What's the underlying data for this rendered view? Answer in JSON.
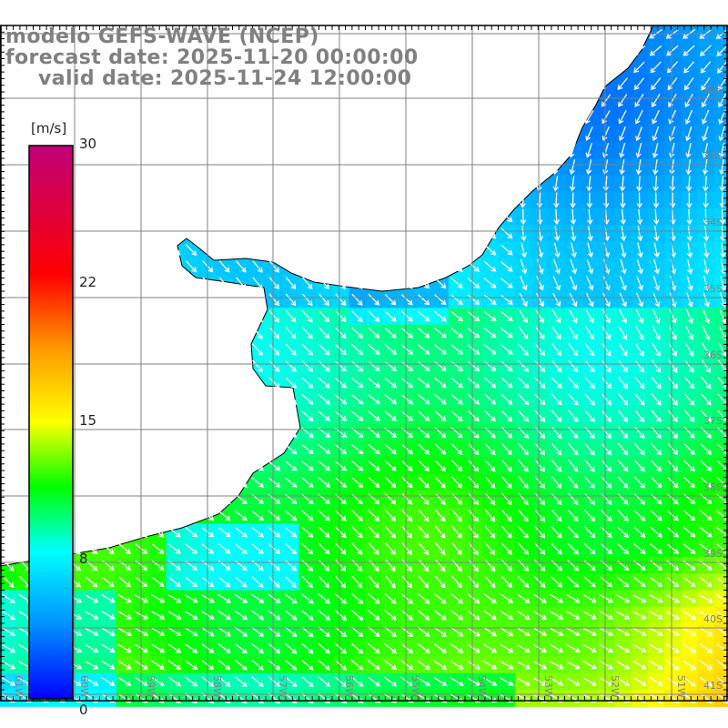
{
  "title": {
    "line1": "modelo GEFS-WAVE (NCEP)",
    "line2": "forecast date: 2025-11-20 00:00:00",
    "line3": "valid date: 2025-11-24 12:00:00"
  },
  "colorbar": {
    "unit": "[m/s]",
    "labels": [
      "30",
      "22",
      "15",
      "8",
      "0"
    ],
    "stops": [
      {
        "value": 0,
        "color": "#0000ff"
      },
      {
        "value": 4,
        "color": "#0090ff"
      },
      {
        "value": 8,
        "color": "#00ffff"
      },
      {
        "value": 11.5,
        "color": "#00ff00"
      },
      {
        "value": 15,
        "color": "#ffff00"
      },
      {
        "value": 19,
        "color": "#ff9900"
      },
      {
        "value": 23,
        "color": "#ff0000"
      },
      {
        "value": 30,
        "color": "#c0007a"
      }
    ]
  },
  "lat_labels": [
    "32S",
    "33S",
    "34S",
    "35S",
    "36S",
    "37S",
    "38S",
    "39S",
    "40S",
    "41S"
  ],
  "lon_labels": [
    "61W",
    "60W",
    "59W",
    "58W",
    "57W",
    "56W",
    "55W",
    "54W",
    "53W",
    "52W",
    "51W"
  ]
}
